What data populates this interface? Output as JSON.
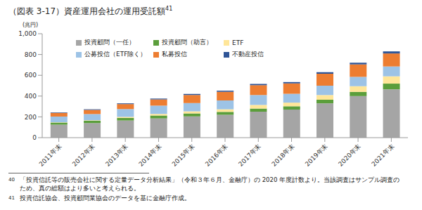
{
  "chart_data": {
    "type": "bar",
    "title": "（図表 3-17）資産運用会社の運用受託額",
    "title_footnote_mark": "41",
    "y_label": "(兆円)",
    "categories": [
      "2011年末",
      "2012年末",
      "2013年末",
      "2014年末",
      "2015年末",
      "2016年末",
      "2017年末",
      "2018年末",
      "2019年末",
      "2020年末",
      "2021年末"
    ],
    "series": [
      {
        "name": "投資顧問（一任）",
        "color": "#a5a5a5",
        "values": [
          125,
          140,
          165,
          185,
          205,
          220,
          250,
          270,
          330,
          400,
          465
        ]
      },
      {
        "name": "投資顧問（助言）",
        "color": "#5b9e3b",
        "values": [
          20,
          22,
          25,
          28,
          28,
          28,
          30,
          32,
          35,
          40,
          55
        ]
      },
      {
        "name": "ETF",
        "color": "#ffe699",
        "values": [
          3,
          5,
          10,
          15,
          20,
          25,
          35,
          35,
          45,
          55,
          70
        ]
      },
      {
        "name": "公募投信（ETF除く）",
        "color": "#9dc3e6",
        "values": [
          55,
          60,
          75,
          80,
          80,
          85,
          95,
          85,
          90,
          90,
          95
        ]
      },
      {
        "name": "私募投信",
        "color": "#ed7d31",
        "values": [
          35,
          40,
          48,
          60,
          78,
          83,
          95,
          100,
          115,
          120,
          125
        ]
      },
      {
        "name": "不動産投信",
        "color": "#2f5597",
        "values": [
          5,
          6,
          7,
          8,
          10,
          11,
          12,
          13,
          15,
          16,
          20
        ]
      }
    ],
    "ylim": [
      0,
      1000
    ],
    "yticks": [
      0,
      200,
      400,
      600,
      800,
      {
        "value": 1000,
        "label": "1,000"
      }
    ],
    "stacked": true,
    "grid": false,
    "legend": "top-left",
    "footnotes": [
      {
        "mark": "40",
        "text": "「投資信託等の販売会社に関する定量データ分析結果」（令和３年６月、金融庁）の 2020 年度計数より。当該調査はサンプル調査のため、真の総額はより多いと考えられる。"
      },
      {
        "mark": "41",
        "text": "投資信託協会、投資顧問業協会のデータを基に金融庁作成。"
      }
    ]
  }
}
